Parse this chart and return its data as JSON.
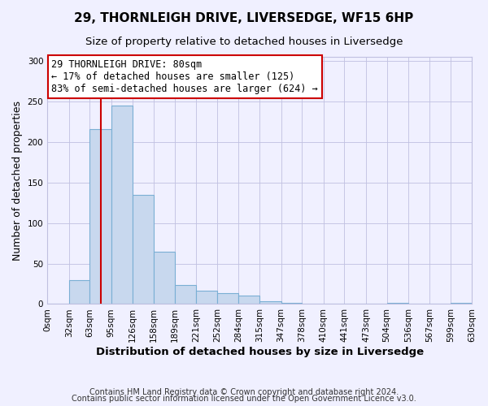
{
  "title": "29, THORNLEIGH DRIVE, LIVERSEDGE, WF15 6HP",
  "subtitle": "Size of property relative to detached houses in Liversedge",
  "xlabel": "Distribution of detached houses by size in Liversedge",
  "ylabel": "Number of detached properties",
  "bin_edges": [
    0,
    32,
    63,
    95,
    126,
    158,
    189,
    221,
    252,
    284,
    315,
    347,
    378,
    410,
    441,
    473,
    504,
    536,
    567,
    599,
    630
  ],
  "bin_labels": [
    "0sqm",
    "32sqm",
    "63sqm",
    "95sqm",
    "126sqm",
    "158sqm",
    "189sqm",
    "221sqm",
    "252sqm",
    "284sqm",
    "315sqm",
    "347sqm",
    "378sqm",
    "410sqm",
    "441sqm",
    "473sqm",
    "504sqm",
    "536sqm",
    "567sqm",
    "599sqm",
    "630sqm"
  ],
  "bar_heights": [
    0,
    30,
    216,
    245,
    135,
    65,
    24,
    16,
    13,
    10,
    3,
    1,
    0,
    0,
    0,
    0,
    1,
    0,
    0,
    1
  ],
  "bar_color": "#c8d8ee",
  "bar_edge_color": "#7aafd4",
  "vline_x": 80,
  "vline_color": "#cc0000",
  "annotation_line1": "29 THORNLEIGH DRIVE: 80sqm",
  "annotation_line2": "← 17% of detached houses are smaller (125)",
  "annotation_line3": "83% of semi-detached houses are larger (624) →",
  "annotation_box_edge_color": "#cc0000",
  "annotation_box_facecolor": "#ffffff",
  "ylim": [
    0,
    305
  ],
  "footnote1": "Contains HM Land Registry data © Crown copyright and database right 2024.",
  "footnote2": "Contains public sector information licensed under the Open Government Licence v3.0.",
  "background_color": "#f0f0ff",
  "plot_bg_color": "#f0f0ff",
  "grid_color": "#c0c0e0",
  "title_fontsize": 11,
  "subtitle_fontsize": 9.5,
  "ylabel_fontsize": 9,
  "xlabel_fontsize": 9.5,
  "tick_fontsize": 7.5,
  "annotation_fontsize": 8.5,
  "footnote_fontsize": 7
}
